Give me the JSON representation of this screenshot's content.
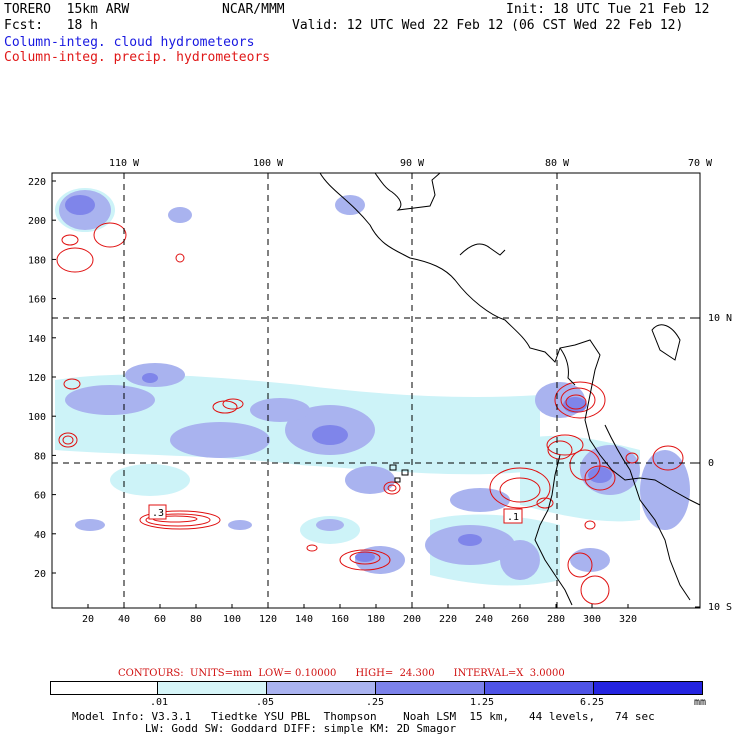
{
  "header": {
    "model": "TORERO  15km ARW",
    "org": "NCAR/MMM",
    "init": "Init: 18 UTC Tue 21 Feb 12",
    "fcst": "Fcst:   18 h",
    "valid": "Valid: 12 UTC Wed 22 Feb 12 (06 CST Wed 22 Feb 12)",
    "field_blue": "Column-integ. cloud hydrometeors",
    "field_red": "Column-integ. precip. hydrometeors"
  },
  "colors": {
    "cloud_light": "#cdf3f8",
    "cloud_mid": "#a9b3ef",
    "cloud_dark": "#7f85ea",
    "precip_contour": "#e01010",
    "coast": "#000000",
    "legend": [
      "#ffffff",
      "#d6f5f8",
      "#aab3f0",
      "#7c82ea",
      "#4f54e6",
      "#2424e0"
    ]
  },
  "map": {
    "lon_labels": [
      "110 W",
      "100 W",
      "90 W",
      "80 W",
      "70 W"
    ],
    "lat_labels": [
      "10 N",
      "0",
      "10 S"
    ],
    "x_ticks": [
      "20",
      "40",
      "60",
      "80",
      "100",
      "120",
      "140",
      "160",
      "180",
      "200",
      "220",
      "240",
      "260",
      "280",
      "300",
      "320"
    ],
    "y_ticks": [
      "220",
      "200",
      "180",
      "160",
      "140",
      "120",
      "100",
      "80",
      "60",
      "40",
      "20"
    ],
    "contour_labels": [
      ".3",
      ".1"
    ]
  },
  "contours_info": {
    "text": "CONTOURS:  UNITS=mm  LOW= 0.10000      HIGH=  24.300      INTERVAL=X  3.0000"
  },
  "legend": {
    "labels": [
      ".01",
      ".05",
      ".25",
      "1.25",
      "6.25"
    ],
    "unit": "mm"
  },
  "footer": {
    "line1": "Model Info: V3.3.1   Tiedtke YSU PBL  Thompson    Noah LSM  15 km,   44 levels,   74 sec",
    "line2": "           LW: Godd SW: Goddard DIFF: simple KM: 2D Smagor"
  }
}
